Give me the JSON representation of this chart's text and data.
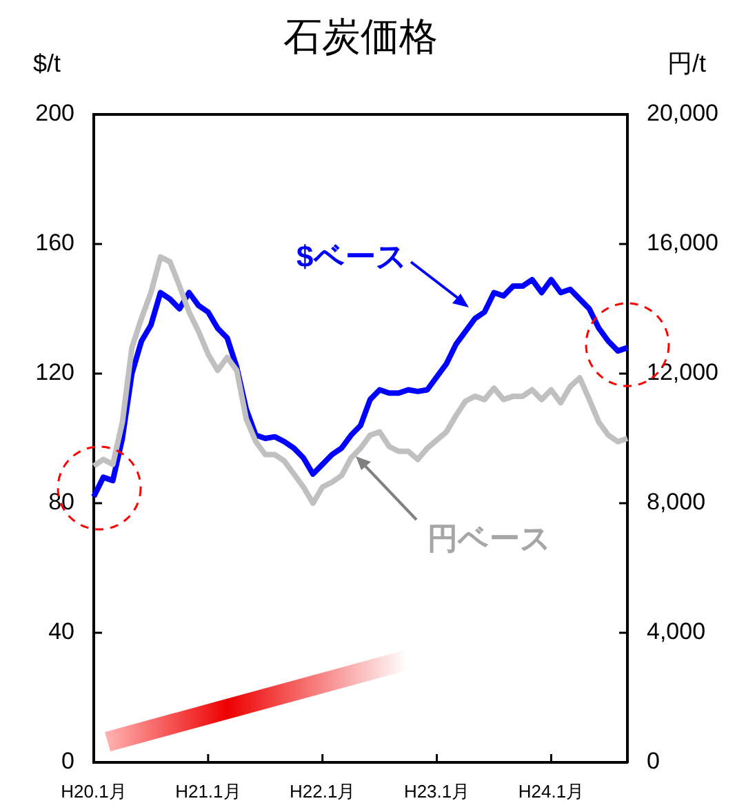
{
  "chart_data": {
    "type": "line",
    "title": "石炭価格",
    "ylabel": "$/t",
    "y2label": "円/t",
    "categories": [
      "H20.1月",
      null,
      null,
      null,
      null,
      null,
      null,
      null,
      null,
      null,
      null,
      null,
      "H21.1月",
      null,
      null,
      null,
      null,
      null,
      null,
      null,
      null,
      null,
      null,
      null,
      "H22.1月",
      null,
      null,
      null,
      null,
      null,
      null,
      null,
      null,
      null,
      null,
      null,
      "H23.1月",
      null,
      null,
      null,
      null,
      null,
      null,
      null,
      null,
      null,
      null,
      null,
      "H24.1月",
      null,
      null,
      null,
      null,
      null,
      null,
      null,
      null
    ],
    "series": [
      {
        "name": "$ベース",
        "color": "#0000ff",
        "values": [
          82,
          88,
          87,
          100,
          120,
          130,
          135,
          145,
          143,
          140,
          145,
          141,
          139,
          134,
          131,
          122,
          109,
          101,
          100,
          100.5,
          99,
          97,
          94,
          89,
          92,
          95,
          97,
          101,
          104,
          112,
          115,
          114,
          114,
          115,
          114.5,
          115,
          119,
          123,
          129,
          133,
          137,
          139,
          145,
          144,
          147,
          147,
          149,
          145,
          149,
          145,
          146,
          143,
          140,
          134,
          130,
          127,
          128
        ]
      },
      {
        "name": "円ベース",
        "color": "#c0c0c0",
        "axis": "y2",
        "values": [
          9150,
          9350,
          9200,
          10500,
          12800,
          13700,
          14500,
          15600,
          15450,
          14700,
          13900,
          13300,
          12600,
          12100,
          12500,
          12100,
          10600,
          9900,
          9500,
          9500,
          9300,
          8900,
          8500,
          8000,
          8500,
          8650,
          8850,
          9400,
          9700,
          10100,
          10200,
          9750,
          9600,
          9600,
          9350,
          9700,
          9950,
          10200,
          10700,
          11150,
          11300,
          11200,
          11550,
          11200,
          11300,
          11300,
          11500,
          11200,
          11500,
          11100,
          11600,
          11870,
          11200,
          10500,
          10100,
          9900,
          10000
        ]
      }
    ],
    "ylim": [
      0,
      200
    ],
    "yticks": [
      0,
      40,
      80,
      120,
      160,
      200
    ],
    "y2lim": [
      0,
      20000
    ],
    "y2ticks": [
      0,
      {
        "value": 4000,
        "label": "4,000"
      },
      {
        "value": 8000,
        "label": "8,000"
      },
      {
        "value": 12000,
        "label": "12,000"
      },
      {
        "value": 16000,
        "label": "16,000"
      },
      {
        "value": 20000,
        "label": "20,000"
      }
    ],
    "marker": "none"
  }
}
